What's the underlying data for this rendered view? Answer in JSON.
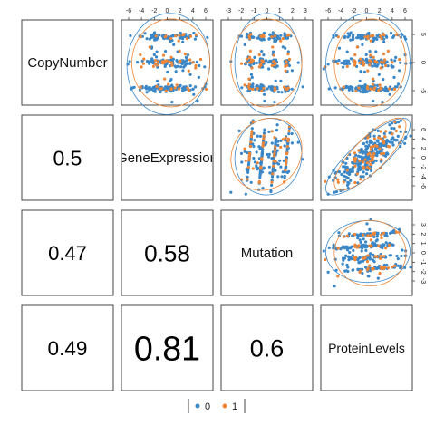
{
  "chart_data": {
    "type": "scatter",
    "variables": [
      "CopyNumber",
      "GeneExpression",
      "Mutation",
      "ProteinLevels"
    ],
    "correlations": [
      {
        "row": 1,
        "col": 0,
        "label": "0.5",
        "value": 0.5
      },
      {
        "row": 2,
        "col": 0,
        "label": "0.47",
        "value": 0.47
      },
      {
        "row": 2,
        "col": 1,
        "label": "0.58",
        "value": 0.58
      },
      {
        "row": 3,
        "col": 0,
        "label": "0.49",
        "value": 0.49
      },
      {
        "row": 3,
        "col": 1,
        "label": "0.81",
        "value": 0.81
      },
      {
        "row": 3,
        "col": 2,
        "label": "0.6",
        "value": 0.6
      }
    ],
    "ranges": {
      "CopyNumber": [
        -7,
        8
      ],
      "GeneExpression": [
        -7,
        6.5
      ],
      "Mutation": [
        -3.5,
        3.3
      ],
      "ProteinLevels": [
        -7,
        6.5
      ]
    },
    "top_axis_ticks": {
      "col1": [
        "-6",
        "-4",
        "-2",
        "0",
        "2",
        "4",
        "6"
      ],
      "col2": [
        "-3",
        "-2",
        "-1",
        "0",
        "1",
        "2",
        "3"
      ],
      "col3": [
        "-6",
        "-4",
        "-2",
        "0",
        "2",
        "4",
        "6"
      ]
    },
    "right_axis_ticks": {
      "row0": [
        "5",
        "0",
        "-5"
      ],
      "row1": [
        "6",
        "4",
        "2",
        "0",
        "-2",
        "-4",
        "-6"
      ],
      "row2": [
        "3",
        "2",
        "1",
        "0",
        "-1",
        "-2",
        "-3"
      ]
    },
    "groups": [
      {
        "name": "0",
        "color": "#3a87c8"
      },
      {
        "name": "1",
        "color": "#ef8636"
      }
    ],
    "legend": {
      "placement": "bottom-center"
    },
    "grid": false
  }
}
